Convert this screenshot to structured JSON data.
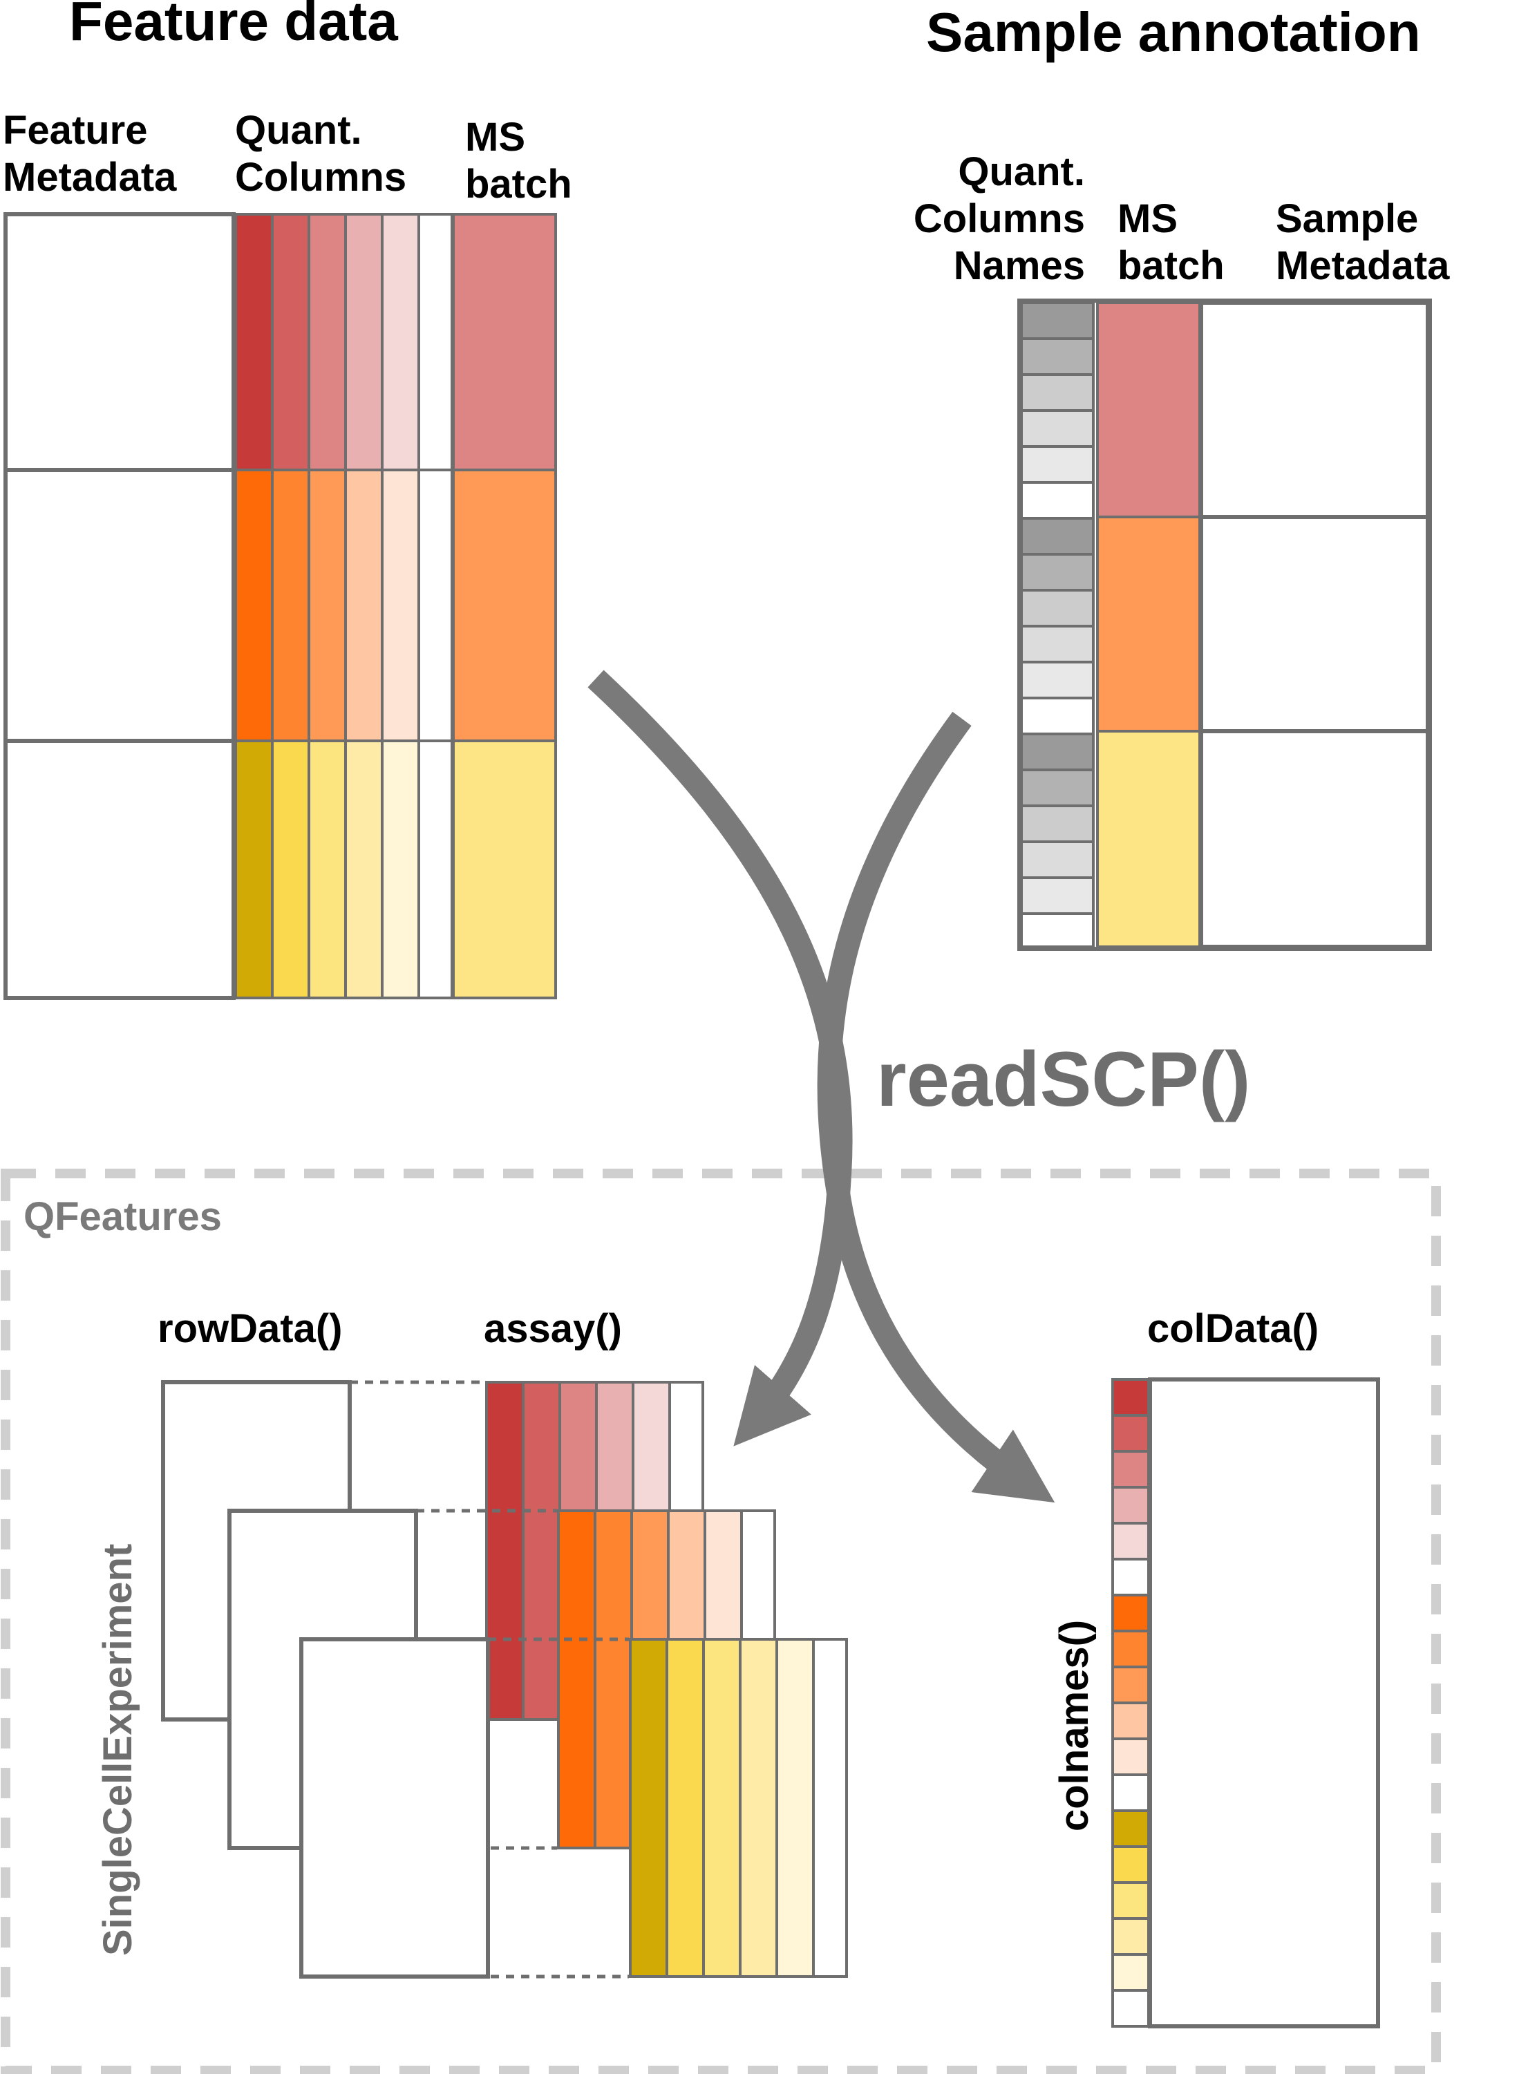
{
  "feature_data": {
    "title": "Feature data",
    "feature_metadata_label": [
      "Feature",
      "Metadata"
    ],
    "quant_columns_label": [
      "Quant.",
      "Columns"
    ],
    "ms_batch_label": [
      "MS",
      "batch"
    ]
  },
  "sample_annotation": {
    "title": "Sample annotation",
    "quant_names_label": [
      "Quant.",
      "Columns",
      "Names"
    ],
    "ms_batch_label": [
      "MS",
      "batch"
    ],
    "sample_metadata_label": [
      "Sample",
      "Metadata"
    ]
  },
  "function_label": "readSCP()",
  "qfeatures": {
    "label": "QFeatures",
    "rowdata_label": "rowData()",
    "assay_label": "assay()",
    "coldata_label": "colData()",
    "colnames_label": "colnames()",
    "sce_label": "SingleCellExperiment"
  },
  "colors": {
    "red_shades": [
      "#c63a3a",
      "#d45f5f",
      "#dd8585",
      "#e8b0b0",
      "#f4d8d8",
      "#ffffff"
    ],
    "orange_shades": [
      "#fe6a07",
      "#fe842f",
      "#fe9a55",
      "#fec6a3",
      "#fee4d4",
      "#ffffff"
    ],
    "yellow_shades": [
      "#d2aa05",
      "#fad94e",
      "#fce47f",
      "#fdeba7",
      "#fef6d6",
      "#ffffff"
    ],
    "batch_red": "#dd8585",
    "batch_orange": "#fe9a55",
    "batch_yellow": "#fde484",
    "grey_shades": [
      "#9a9a9a",
      "#b2b2b2",
      "#cccccc",
      "#dcdcdc",
      "#e8e8e8",
      "#ffffff"
    ],
    "stroke": "#6e6e6e",
    "dashed_border": "#cfcfcf",
    "arrow": "#7a7a7a"
  }
}
